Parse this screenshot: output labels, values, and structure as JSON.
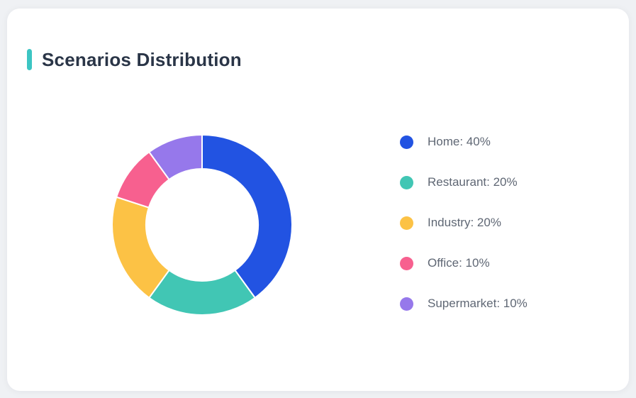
{
  "page": {
    "background_color": "#eff1f4"
  },
  "card": {
    "title": "Scenarios Distribution",
    "accent_color": "#3cc5c3",
    "background_color": "#ffffff",
    "title_color": "#2a3547"
  },
  "chart_data": {
    "type": "pie",
    "subtype": "donut",
    "title": "Scenarios Distribution",
    "start_angle_deg": 0,
    "direction": "clockwise",
    "inner_radius_ratio": 0.62,
    "separator_color": "#ffffff",
    "legend_position": "right",
    "legend_text_color": "#5f6774",
    "segments": [
      {
        "label": "Home",
        "value": 40,
        "unit": "%",
        "color": "#2253e2",
        "legend_text": "Home: 40%"
      },
      {
        "label": "Restaurant",
        "value": 20,
        "unit": "%",
        "color": "#41c6b4",
        "legend_text": "Restaurant: 20%"
      },
      {
        "label": "Industry",
        "value": 20,
        "unit": "%",
        "color": "#fcc245",
        "legend_text": "Industry: 20%"
      },
      {
        "label": "Office",
        "value": 10,
        "unit": "%",
        "color": "#f7608f",
        "legend_text": "Office: 10%"
      },
      {
        "label": "Supermarket",
        "value": 10,
        "unit": "%",
        "color": "#9678eb",
        "legend_text": "Supermarket: 10%"
      }
    ]
  }
}
